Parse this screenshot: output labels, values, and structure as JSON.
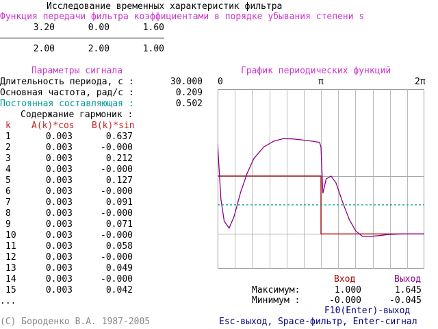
{
  "header": {
    "title": "Исследование временных характеристик фильтра",
    "subtitle": "Функция передачи фильтра коэффициентами в порядке убывания степени s"
  },
  "transfer_function": {
    "numerator": [
      "3.20",
      "0.00",
      "1.60"
    ],
    "denominator": [
      "2.00",
      "2.00",
      "1.00"
    ]
  },
  "signal_params": {
    "heading": "Параметры сигнала",
    "period_label": "Длительность периода, с :",
    "period_value": "30.000",
    "freq_label": "Основная частота, рад/с :",
    "freq_value": "0.209",
    "dc_label": "Постоянная составляющая :",
    "dc_value": "0.502",
    "harmonics_label": "Содержание гармоник :"
  },
  "harmonics_table": {
    "headers": [
      "k",
      "A(k)*cos",
      "B(k)*sin"
    ],
    "rows": [
      {
        "k": "1",
        "a": "0.003",
        "b": "0.637"
      },
      {
        "k": "2",
        "a": "0.003",
        "b": "-0.000"
      },
      {
        "k": "3",
        "a": "0.003",
        "b": "0.212"
      },
      {
        "k": "4",
        "a": "0.003",
        "b": "-0.000"
      },
      {
        "k": "5",
        "a": "0.003",
        "b": "0.127"
      },
      {
        "k": "6",
        "a": "0.003",
        "b": "-0.000"
      },
      {
        "k": "7",
        "a": "0.003",
        "b": "0.091"
      },
      {
        "k": "8",
        "a": "0.003",
        "b": "-0.000"
      },
      {
        "k": "9",
        "a": "0.003",
        "b": "0.071"
      },
      {
        "k": "10",
        "a": "0.003",
        "b": "-0.000"
      },
      {
        "k": "11",
        "a": "0.003",
        "b": "0.058"
      },
      {
        "k": "12",
        "a": "0.003",
        "b": "-0.000"
      },
      {
        "k": "13",
        "a": "0.003",
        "b": "0.049"
      },
      {
        "k": "14",
        "a": "0.003",
        "b": "-0.000"
      },
      {
        "k": "15",
        "a": "0.003",
        "b": "0.042"
      }
    ],
    "ellipsis": "..."
  },
  "graph": {
    "title": "График периодических функций",
    "tick_left": "0",
    "tick_mid": "π",
    "tick_right": "2π"
  },
  "stats": {
    "input_label": "Вход",
    "output_label": "Выход",
    "max_label": "Максимум:",
    "max_in": "1.000",
    "max_out": "1.645",
    "min_label": "Минимум :",
    "min_in": "-0.000",
    "min_out": "-0.045"
  },
  "footer": {
    "copyright": "(C) Бороденко В.А. 1987-2005",
    "f10": "F10(Enter)-выход",
    "keys": "Esc-выход, Space-фильтр, Enter-сигнал"
  },
  "colors": {
    "input": "#aa0000",
    "output": "#880088",
    "dc": "#009999"
  },
  "chart_data": {
    "type": "line",
    "title": "График периодических функций",
    "xlabel": "",
    "ylabel": "",
    "x_ticks": [
      "0",
      "π",
      "2π"
    ],
    "xlim": [
      0,
      6.2832
    ],
    "ylim": [
      -0.6,
      2.5
    ],
    "series": [
      {
        "name": "Вход",
        "color": "#aa0000",
        "x": [
          0,
          3.1416,
          3.1416,
          6.2832
        ],
        "y": [
          1.0,
          1.0,
          0.0,
          0.0
        ]
      },
      {
        "name": "Выход",
        "color": "#880088",
        "x": [
          0,
          0.1,
          0.2,
          0.35,
          0.5,
          0.7,
          0.9,
          1.1,
          1.4,
          1.7,
          2.0,
          2.3,
          2.6,
          2.9,
          3.1,
          3.1416,
          3.2,
          3.3,
          3.45,
          3.6,
          3.8,
          4.0,
          4.2,
          4.4,
          4.6,
          4.9,
          5.2,
          5.6,
          6.0,
          6.2832
        ],
        "y": [
          1.55,
          0.6,
          0.22,
          0.1,
          0.3,
          0.72,
          1.05,
          1.3,
          1.5,
          1.6,
          1.645,
          1.64,
          1.62,
          1.6,
          1.58,
          1.5,
          0.7,
          0.95,
          1.0,
          0.88,
          0.55,
          0.25,
          0.05,
          -0.04,
          -0.045,
          -0.03,
          -0.01,
          0.0,
          0.0,
          0.0
        ]
      },
      {
        "name": "Постоянная составляющая",
        "color": "#009999",
        "x": [
          0,
          6.2832
        ],
        "y": [
          0.502,
          0.502
        ]
      }
    ]
  }
}
